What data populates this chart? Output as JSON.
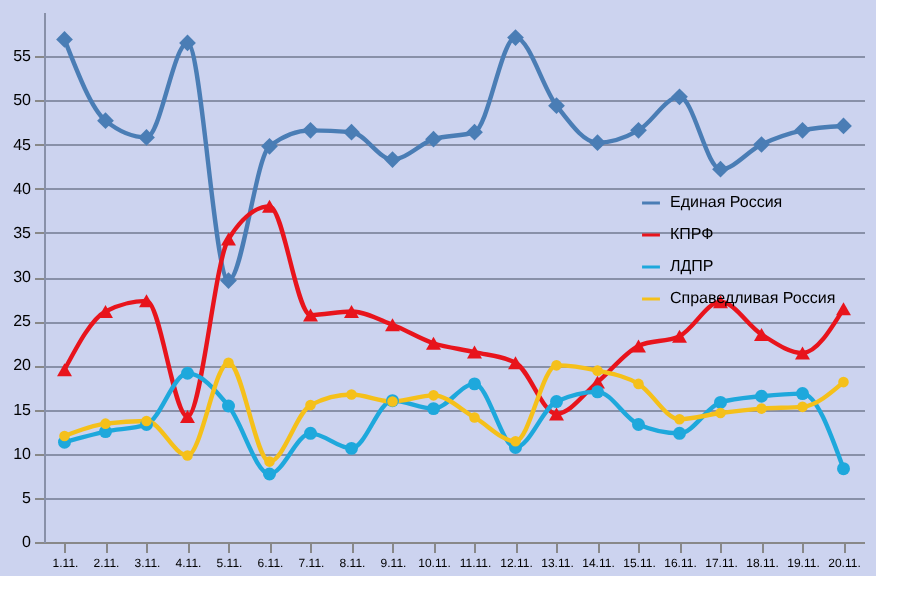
{
  "chart_data": {
    "type": "line",
    "categories": [
      "1.11.",
      "2.11.",
      "3.11.",
      "4.11.",
      "5.11.",
      "6.11.",
      "7.11.",
      "8.11.",
      "9.11.",
      "10.11.",
      "11.11.",
      "12.11.",
      "13.11.",
      "14.11.",
      "15.11.",
      "16.11.",
      "17.11.",
      "18.11.",
      "19.11.",
      "20.11."
    ],
    "series": [
      {
        "name": "Единая Россия",
        "color": "#4a7db5",
        "marker": "diamond",
        "values": [
          56.9,
          47.7,
          45.8,
          56.5,
          29.6,
          44.8,
          46.6,
          46.4,
          43.3,
          45.6,
          46.4,
          57.1,
          49.4,
          45.2,
          46.6,
          50.4,
          42.2,
          45.0,
          46.6,
          47.1
        ]
      },
      {
        "name": "КПРФ",
        "color": "#e8141c",
        "marker": "triangle",
        "values": [
          19.5,
          26.1,
          27.3,
          14.2,
          34.3,
          38.0,
          25.7,
          26.1,
          24.6,
          22.5,
          21.5,
          20.3,
          14.5,
          18.1,
          22.2,
          23.3,
          27.2,
          23.5,
          21.4,
          26.4
        ]
      },
      {
        "name": "ЛДПР",
        "color": "#1ea8dc",
        "marker": "circle",
        "values": [
          11.3,
          12.5,
          13.3,
          19.1,
          15.4,
          7.7,
          12.3,
          10.6,
          16.0,
          15.1,
          17.9,
          10.7,
          15.9,
          17.0,
          13.3,
          12.3,
          15.8,
          16.5,
          16.8,
          8.3
        ]
      },
      {
        "name": "Справедливая Россия",
        "color": "#f5c01a",
        "marker": "circle",
        "values": [
          12.0,
          13.4,
          13.7,
          9.8,
          20.3,
          9.1,
          15.5,
          16.7,
          15.9,
          16.6,
          14.1,
          11.4,
          20.0,
          19.4,
          17.9,
          13.9,
          14.6,
          15.1,
          15.3,
          18.1
        ]
      }
    ],
    "ylim": [
      0,
      60
    ],
    "yticks": [
      0,
      5,
      10,
      15,
      20,
      25,
      30,
      35,
      40,
      45,
      50,
      55
    ],
    "grid": "y",
    "legend": "right",
    "line_style": "solid"
  }
}
